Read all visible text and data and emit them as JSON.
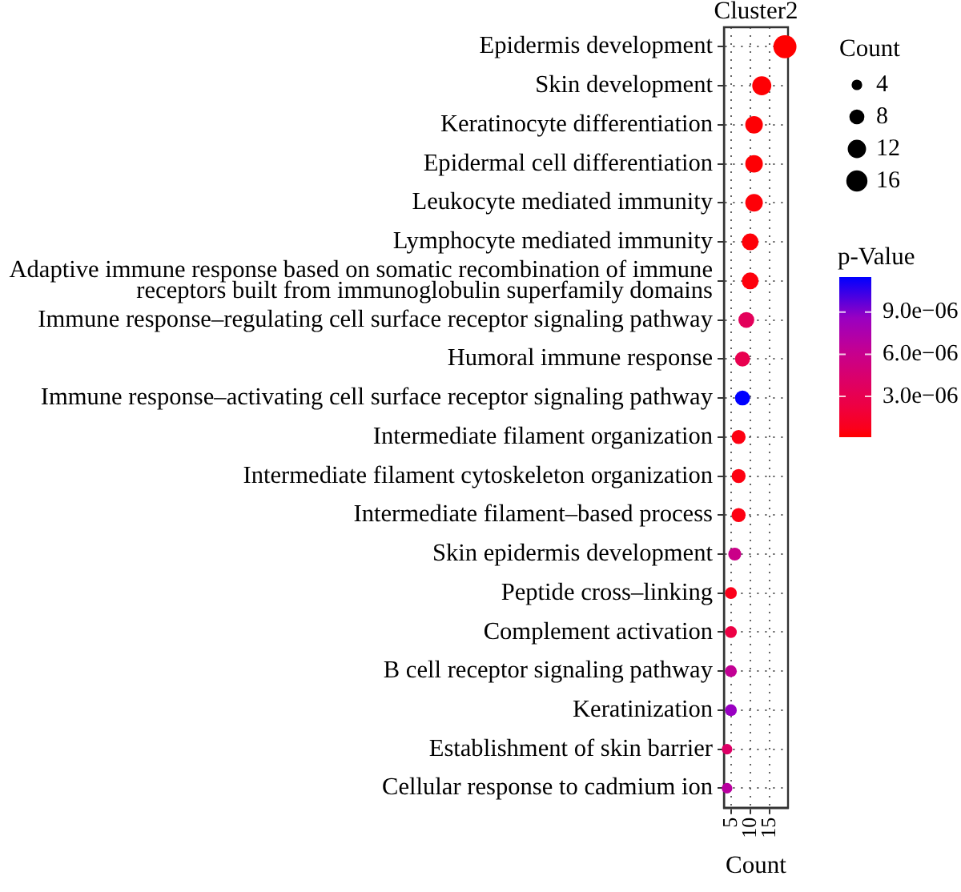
{
  "chart_data": {
    "type": "bubble",
    "title": "Cluster2",
    "xlabel": "Count",
    "legend_title": "Count",
    "clabel": "p-Value",
    "orientation": "horizontal",
    "categories": [
      "Epidermis development",
      "Skin development",
      "Keratinocyte differentiation",
      "Epidermal cell differentiation",
      "Leukocyte mediated immunity",
      "Lymphocyte mediated immunity",
      "Adaptive immune response based on somatic recombination of immune receptors built from immunoglobulin superfamily domains",
      "Immune response–regulating cell surface receptor signaling pathway",
      "Humoral immune response",
      "Immune response–activating cell surface receptor signaling pathway",
      "Intermediate filament organization",
      "Intermediate filament cytoskeleton organization",
      "Intermediate filament–based process",
      "Skin epidermis development",
      "Peptide cross–linking",
      "Complement activation",
      "B cell receptor signaling pathway",
      "Keratinization",
      "Establishment of skin barrier",
      "Cellular response to cadmium ion"
    ],
    "values": [
      19,
      13,
      11,
      11,
      11,
      10,
      10,
      9,
      8,
      8,
      7,
      7,
      7,
      6,
      5,
      5,
      5,
      5,
      4,
      4
    ],
    "sizes": [
      19,
      13,
      11,
      11,
      11,
      10,
      10,
      9,
      8,
      8,
      7,
      7,
      7,
      6,
      5,
      5,
      5,
      5,
      4,
      4
    ],
    "size_legend": [
      4,
      8,
      12,
      16
    ],
    "cvalues": [
      1e-07,
      2e-07,
      2e-07,
      2e-07,
      3e-07,
      3e-07,
      4e-07,
      3.5e-06,
      3e-06,
      1.15e-05,
      5e-07,
      5e-07,
      5e-07,
      5.8e-06,
      7e-07,
      2.4e-06,
      6.4e-06,
      8.6e-06,
      4.1e-06,
      6.9e-06
    ],
    "colors": [
      "#ff0000",
      "#fe0004",
      "#fe0004",
      "#fe0004",
      "#fe0008",
      "#fe0008",
      "#fd000c",
      "#e3005a",
      "#e8004f",
      "#0000ff",
      "#fd0011",
      "#fd0011",
      "#fd0011",
      "#ca0088",
      "#fb001a",
      "#ed0044",
      "#c20094",
      "#9900c2",
      "#dd0066",
      "#b9009f"
    ],
    "xlim": [
      3.2,
      19.8
    ],
    "xticks": [
      5,
      10,
      15
    ],
    "clim": [
      1e-07,
      1.15e-05
    ],
    "cticks": [
      {
        "value": 3e-06,
        "label": "3.0e−06"
      },
      {
        "value": 6e-06,
        "label": "6.0e−06"
      },
      {
        "value": 9e-06,
        "label": "9.0e−06"
      }
    ],
    "grid": true
  }
}
